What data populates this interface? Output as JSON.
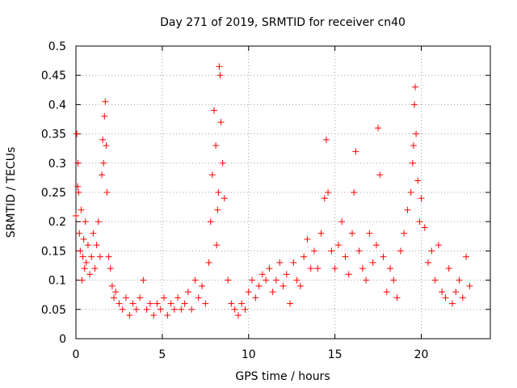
{
  "chart_data": {
    "type": "scatter",
    "title": "Day 271 of 2019, SRMTID for receiver cn40",
    "xlabel": "GPS time / hours",
    "ylabel": "SRMTID / TECUs",
    "xlim": [
      0,
      24
    ],
    "ylim": [
      0,
      0.5
    ],
    "xticks": [
      0,
      5,
      10,
      15,
      20
    ],
    "xtick_labels": [
      "0",
      "5",
      "10",
      "15",
      "20"
    ],
    "yticks": [
      0,
      0.05,
      0.1,
      0.15,
      0.2,
      0.25,
      0.3,
      0.35,
      0.4,
      0.45,
      0.5
    ],
    "ytick_labels": [
      "0",
      "0.05",
      "0.1",
      "0.15",
      "0.2",
      "0.25",
      "0.3",
      "0.35",
      "0.4",
      "0.45",
      "0.5"
    ],
    "grid": true,
    "marker": "+",
    "color": "#ff0000",
    "series": [
      {
        "name": "SRMTID",
        "x": [
          0.0,
          0.05,
          0.1,
          0.12,
          0.15,
          0.2,
          0.25,
          0.3,
          0.35,
          0.4,
          0.45,
          0.5,
          0.55,
          0.6,
          0.7,
          0.8,
          0.9,
          1.0,
          1.1,
          1.2,
          1.3,
          1.4,
          1.5,
          1.55,
          1.6,
          1.65,
          1.7,
          1.75,
          1.8,
          1.9,
          2.0,
          2.1,
          2.2,
          2.3,
          2.5,
          2.7,
          2.9,
          3.1,
          3.3,
          3.5,
          3.7,
          3.9,
          4.1,
          4.3,
          4.5,
          4.7,
          4.9,
          5.1,
          5.3,
          5.5,
          5.7,
          5.9,
          6.1,
          6.3,
          6.5,
          6.7,
          6.9,
          7.1,
          7.3,
          7.5,
          7.7,
          7.8,
          7.9,
          8.0,
          8.1,
          8.15,
          8.2,
          8.25,
          8.3,
          8.35,
          8.4,
          8.5,
          8.6,
          8.8,
          9.0,
          9.2,
          9.4,
          9.6,
          9.8,
          10.0,
          10.2,
          10.4,
          10.6,
          10.8,
          11.0,
          11.2,
          11.4,
          11.6,
          11.8,
          12.0,
          12.2,
          12.4,
          12.6,
          12.8,
          13.0,
          13.2,
          13.4,
          13.6,
          13.8,
          14.0,
          14.2,
          14.4,
          14.5,
          14.6,
          14.8,
          15.0,
          15.2,
          15.4,
          15.6,
          15.8,
          16.0,
          16.1,
          16.2,
          16.4,
          16.6,
          16.8,
          17.0,
          17.2,
          17.4,
          17.5,
          17.6,
          17.8,
          18.0,
          18.2,
          18.4,
          18.6,
          18.8,
          19.0,
          19.2,
          19.4,
          19.5,
          19.55,
          19.6,
          19.65,
          19.7,
          19.8,
          19.9,
          20.0,
          20.2,
          20.4,
          20.6,
          20.8,
          21.0,
          21.2,
          21.4,
          21.6,
          21.8,
          22.0,
          22.2,
          22.4,
          22.6,
          22.8
        ],
        "y": [
          0.21,
          0.35,
          0.26,
          0.3,
          0.25,
          0.18,
          0.15,
          0.22,
          0.1,
          0.14,
          0.17,
          0.12,
          0.2,
          0.13,
          0.16,
          0.11,
          0.14,
          0.18,
          0.12,
          0.16,
          0.2,
          0.14,
          0.28,
          0.34,
          0.3,
          0.38,
          0.405,
          0.33,
          0.25,
          0.14,
          0.12,
          0.09,
          0.07,
          0.08,
          0.06,
          0.05,
          0.07,
          0.04,
          0.06,
          0.05,
          0.07,
          0.1,
          0.05,
          0.06,
          0.04,
          0.06,
          0.05,
          0.07,
          0.04,
          0.06,
          0.05,
          0.07,
          0.05,
          0.06,
          0.08,
          0.05,
          0.1,
          0.07,
          0.09,
          0.06,
          0.13,
          0.2,
          0.28,
          0.39,
          0.33,
          0.16,
          0.22,
          0.25,
          0.465,
          0.45,
          0.37,
          0.3,
          0.24,
          0.1,
          0.06,
          0.05,
          0.04,
          0.06,
          0.05,
          0.08,
          0.1,
          0.07,
          0.09,
          0.11,
          0.1,
          0.12,
          0.08,
          0.1,
          0.13,
          0.09,
          0.11,
          0.06,
          0.13,
          0.1,
          0.09,
          0.14,
          0.17,
          0.12,
          0.15,
          0.12,
          0.18,
          0.24,
          0.34,
          0.25,
          0.15,
          0.12,
          0.16,
          0.2,
          0.14,
          0.11,
          0.18,
          0.25,
          0.32,
          0.15,
          0.12,
          0.1,
          0.18,
          0.13,
          0.16,
          0.36,
          0.28,
          0.14,
          0.08,
          0.12,
          0.1,
          0.07,
          0.15,
          0.18,
          0.22,
          0.25,
          0.3,
          0.33,
          0.4,
          0.43,
          0.35,
          0.27,
          0.2,
          0.24,
          0.19,
          0.13,
          0.15,
          0.1,
          0.16,
          0.08,
          0.07,
          0.12,
          0.06,
          0.08,
          0.1,
          0.07,
          0.14,
          0.09
        ]
      }
    ]
  }
}
